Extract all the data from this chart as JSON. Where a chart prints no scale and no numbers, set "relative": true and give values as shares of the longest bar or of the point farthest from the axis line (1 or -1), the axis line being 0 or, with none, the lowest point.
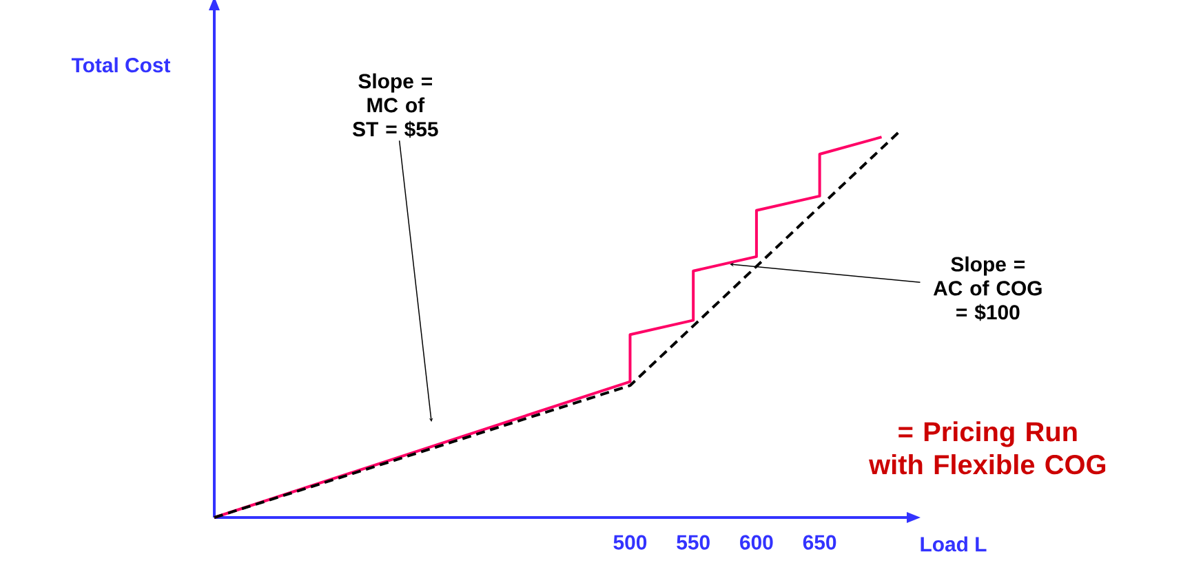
{
  "chart_data": {
    "type": "line",
    "relative": true,
    "xlabel": "Load L",
    "ylabel": "Total Cost",
    "xlim": [
      171,
      720
    ],
    "xticks": [
      500,
      550,
      600,
      650
    ],
    "marker": "none",
    "series": [
      {
        "color": "#ff0066",
        "line_style": "solid",
        "x": [
          171,
          500,
          500,
          550,
          550,
          600,
          600,
          650,
          650,
          699
        ],
        "values": [
          0,
          0.35,
          0.471,
          0.508,
          0.635,
          0.672,
          0.791,
          0.828,
          0.936,
          0.98
        ]
      },
      {
        "color": "#000000",
        "line_style": "dashed",
        "x": [
          171,
          500,
          715
        ],
        "values": [
          0,
          0.34,
          1.0
        ]
      }
    ],
    "annotations": [
      "Slope = MC of ST = $55",
      "Slope = AC of COG = $100",
      "= Pricing Run with Flexible COG"
    ]
  }
}
